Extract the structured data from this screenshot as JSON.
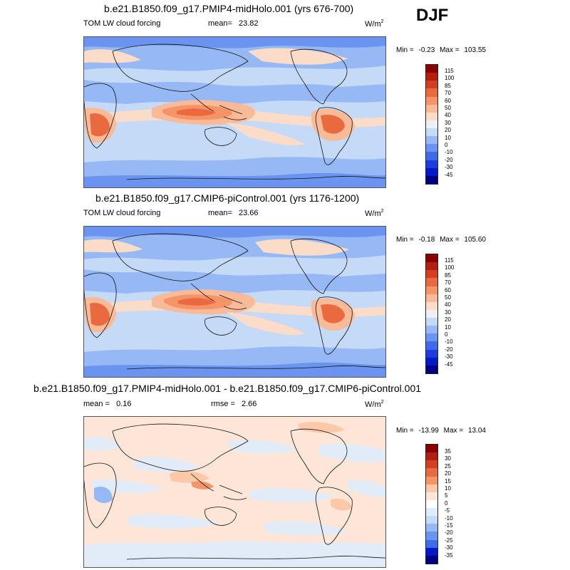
{
  "season": "DJF",
  "colors": {
    "cloud_forcing_scale": [
      "#000080",
      "#0019c7",
      "#1c3ddc",
      "#3f6be8",
      "#6a94f0",
      "#96b8f5",
      "#c4daf7",
      "#eef0f3",
      "#fbdcc8",
      "#f9bb97",
      "#f49468",
      "#e96a3e",
      "#d24021",
      "#b41e0f",
      "#8b0000"
    ],
    "difference_scale": [
      "#000080",
      "#0019c7",
      "#1c3ddc",
      "#3f6be8",
      "#6a94f0",
      "#96b8f5",
      "#c4daf7",
      "#e1ecf8",
      "#fde6d8",
      "#fbc9a8",
      "#f49468",
      "#e96a3e",
      "#d24021",
      "#b41e0f",
      "#8b0000"
    ]
  },
  "panels": [
    {
      "title": "b.e21.B1850.f09_g17.PMIP4-midHolo.001 (yrs 676-700)",
      "left_label": "TOM LW cloud forcing",
      "mean_label": "mean=",
      "mean_value": "23.82",
      "rmse_label": "",
      "rmse_value": "",
      "unit": "W/m",
      "unit_sup": "2",
      "min_label": "Min =",
      "min_value": "-0.23",
      "max_label": "Max =",
      "max_value": "103.55",
      "colorbar_labels": [
        "115",
        "100",
        "85",
        "70",
        "60",
        "50",
        "40",
        "30",
        "20",
        "10",
        "0",
        "-10",
        "-20",
        "-30",
        "-45"
      ]
    },
    {
      "title": "b.e21.B1850.f09_g17.CMIP6-piControl.001 (yrs 1176-1200)",
      "left_label": "TOM LW cloud forcing",
      "mean_label": "mean=",
      "mean_value": "23.66",
      "rmse_label": "",
      "rmse_value": "",
      "unit": "W/m",
      "unit_sup": "2",
      "min_label": "Min =",
      "min_value": "-0.18",
      "max_label": "Max =",
      "max_value": "105.60",
      "colorbar_labels": [
        "115",
        "100",
        "85",
        "70",
        "60",
        "50",
        "40",
        "30",
        "20",
        "10",
        "0",
        "-10",
        "-20",
        "-30",
        "-45"
      ]
    },
    {
      "title": "b.e21.B1850.f09_g17.PMIP4-midHolo.001 - b.e21.B1850.f09_g17.CMIP6-piControl.001",
      "left_label": "",
      "mean_label": "mean =",
      "mean_value": "0.16",
      "rmse_label": "rmse =",
      "rmse_value": "2.66",
      "unit": "W/m",
      "unit_sup": "2",
      "min_label": "Min =",
      "min_value": "-13.99",
      "max_label": "Max =",
      "max_value": "13.04",
      "colorbar_labels": [
        "35",
        "30",
        "25",
        "20",
        "15",
        "10",
        "5",
        "0",
        "-5",
        "-10",
        "-15",
        "-20",
        "-25",
        "-30",
        "-35"
      ]
    }
  ],
  "chart_data": [
    {
      "type": "heatmap",
      "title": "b.e21.B1850.f09_g17.PMIP4-midHolo.001 (yrs 676-700)",
      "variable": "TOM LW cloud forcing",
      "units": "W/m2",
      "season": "DJF",
      "mean": 23.82,
      "min": -0.23,
      "max": 103.55,
      "contour_levels": [
        -45,
        -30,
        -20,
        -10,
        0,
        10,
        20,
        30,
        40,
        50,
        60,
        70,
        85,
        100,
        115
      ]
    },
    {
      "type": "heatmap",
      "title": "b.e21.B1850.f09_g17.CMIP6-piControl.001 (yrs 1176-1200)",
      "variable": "TOM LW cloud forcing",
      "units": "W/m2",
      "season": "DJF",
      "mean": 23.66,
      "min": -0.18,
      "max": 105.6,
      "contour_levels": [
        -45,
        -30,
        -20,
        -10,
        0,
        10,
        20,
        30,
        40,
        50,
        60,
        70,
        85,
        100,
        115
      ]
    },
    {
      "type": "heatmap",
      "title": "b.e21.B1850.f09_g17.PMIP4-midHolo.001 - b.e21.B1850.f09_g17.CMIP6-piControl.001",
      "variable": "difference",
      "units": "W/m2",
      "season": "DJF",
      "mean": 0.16,
      "rmse": 2.66,
      "min": -13.99,
      "max": 13.04,
      "contour_levels": [
        -35,
        -30,
        -25,
        -20,
        -15,
        -10,
        -5,
        0,
        5,
        10,
        15,
        20,
        25,
        30,
        35
      ]
    }
  ]
}
